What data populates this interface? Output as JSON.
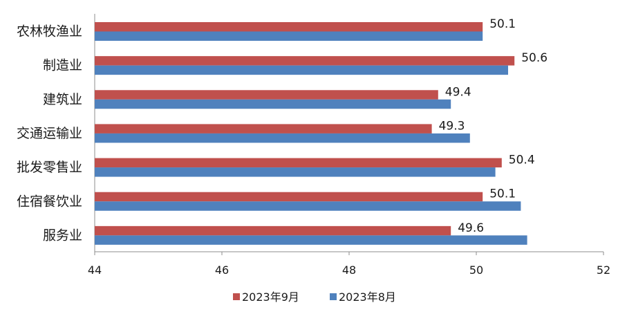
{
  "chart_data": {
    "type": "bar",
    "orientation": "horizontal",
    "categories": [
      "农林牧渔业",
      "制造业",
      "建筑业",
      "交通运输业",
      "批发零售业",
      "住宿餐饮业",
      "服务业"
    ],
    "series": [
      {
        "name": "2023年9月",
        "color": "#C0504D",
        "values": [
          50.1,
          50.6,
          49.4,
          49.3,
          50.4,
          50.1,
          49.6
        ]
      },
      {
        "name": "2023年8月",
        "color": "#4F81BD",
        "values": [
          50.1,
          50.5,
          49.6,
          49.9,
          50.3,
          50.7,
          50.8
        ]
      }
    ],
    "data_labels_series": "2023年9月",
    "xlim": [
      44,
      52
    ],
    "x_ticks": [
      44,
      46,
      48,
      50,
      52
    ],
    "grid": false,
    "legend_position": "bottom"
  }
}
